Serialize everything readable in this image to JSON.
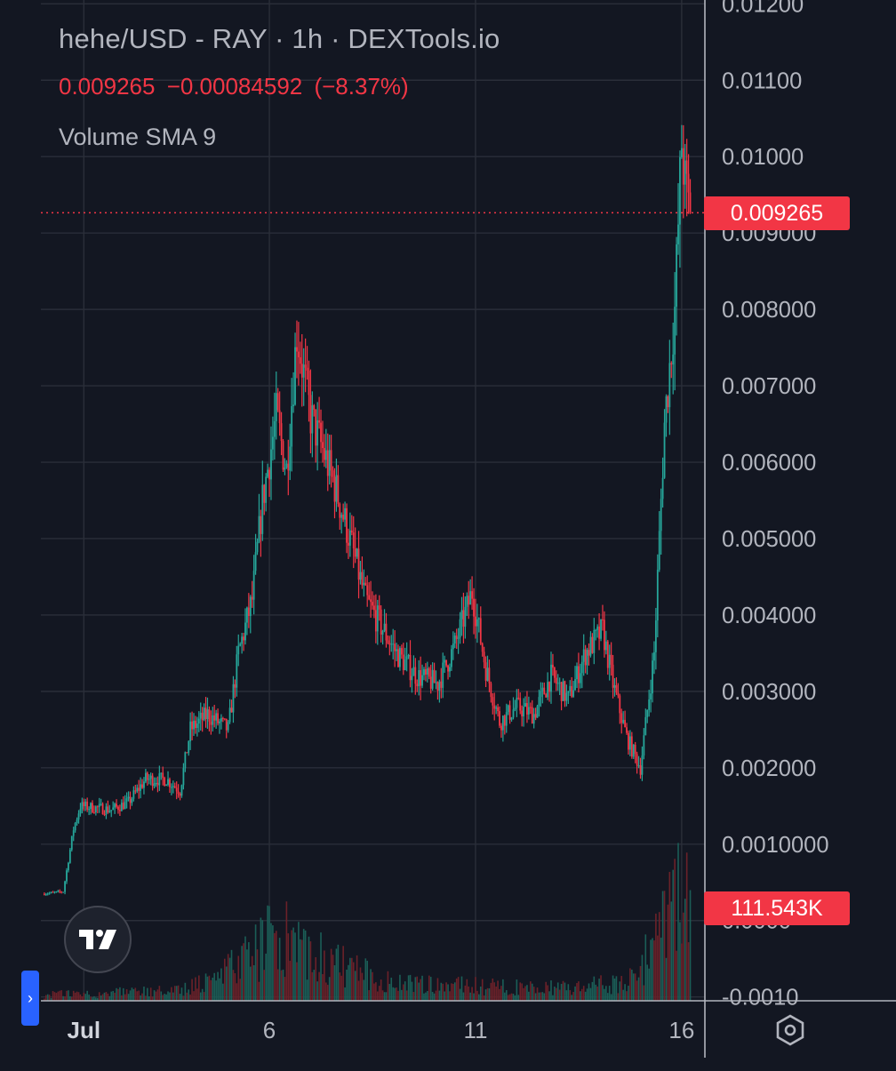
{
  "header": {
    "title": "hehe/USD - RAY · 1h · DEXTools.io",
    "last_price": "0.009265",
    "change": "−0.00084592",
    "change_pct": "(−8.37%)",
    "indicator": "Volume SMA 9"
  },
  "price_tag": "0.009265",
  "volume_tag": "111.543K",
  "colors": {
    "up": "#26a69a",
    "down": "#f23645",
    "background": "#131722",
    "grid": "#2a2e39",
    "text": "#b2b5be"
  },
  "icons": {
    "logo": "tradingview-logo-icon",
    "settings": "hexagon-settings-icon",
    "panel": "chevron-right-icon"
  },
  "chart_data": {
    "type": "candlestick",
    "timeframe": "1h",
    "x_tick_labels": [
      "Jul",
      "6",
      "11",
      "16"
    ],
    "y_tick_labels": [
      "0.01200",
      "0.01100",
      "0.01000",
      "0.009000",
      "0.008000",
      "0.007000",
      "0.006000",
      "0.005000",
      "0.004000",
      "0.003000",
      "0.002000",
      "0.0010000",
      "0.0000",
      "-0.0010"
    ],
    "y_ticks": [
      0.012,
      0.011,
      0.01,
      0.009,
      0.008,
      0.007,
      0.006,
      0.005,
      0.004,
      0.003,
      0.002,
      0.001,
      0.0,
      -0.001
    ],
    "ylim": [
      -0.00105,
      0.01205
    ],
    "xlim": [
      -1,
      385
    ],
    "x_tick_index": [
      24,
      132,
      252,
      372
    ],
    "last_price_line": 0.009265,
    "price_path": [
      [
        0,
        0.00035
      ],
      [
        12,
        0.00038
      ],
      [
        18,
        0.0012
      ],
      [
        22,
        0.0015
      ],
      [
        40,
        0.00145
      ],
      [
        50,
        0.00155
      ],
      [
        60,
        0.00185
      ],
      [
        72,
        0.00185
      ],
      [
        80,
        0.0017
      ],
      [
        86,
        0.0025
      ],
      [
        96,
        0.0027
      ],
      [
        108,
        0.0025
      ],
      [
        114,
        0.0035
      ],
      [
        122,
        0.0042
      ],
      [
        128,
        0.0055
      ],
      [
        136,
        0.0066
      ],
      [
        142,
        0.0059
      ],
      [
        148,
        0.0077
      ],
      [
        156,
        0.0066
      ],
      [
        164,
        0.0061
      ],
      [
        170,
        0.0057
      ],
      [
        180,
        0.0049
      ],
      [
        188,
        0.0042
      ],
      [
        196,
        0.0039
      ],
      [
        206,
        0.0035
      ],
      [
        218,
        0.0032
      ],
      [
        230,
        0.0031
      ],
      [
        240,
        0.0036
      ],
      [
        250,
        0.0043
      ],
      [
        258,
        0.0033
      ],
      [
        266,
        0.0026
      ],
      [
        276,
        0.0028
      ],
      [
        286,
        0.0027
      ],
      [
        296,
        0.0032
      ],
      [
        306,
        0.0029
      ],
      [
        316,
        0.0035
      ],
      [
        326,
        0.0038
      ],
      [
        332,
        0.0031
      ],
      [
        340,
        0.0024
      ],
      [
        348,
        0.002
      ],
      [
        356,
        0.0035
      ],
      [
        362,
        0.0065
      ],
      [
        368,
        0.008
      ],
      [
        372,
        0.0102
      ],
      [
        374,
        0.0096
      ],
      [
        377,
        0.009265
      ]
    ],
    "volume_profile": [
      [
        0,
        0.05
      ],
      [
        80,
        0.08
      ],
      [
        110,
        0.25
      ],
      [
        126,
        0.4
      ],
      [
        136,
        0.55
      ],
      [
        150,
        0.45
      ],
      [
        170,
        0.3
      ],
      [
        200,
        0.15
      ],
      [
        250,
        0.12
      ],
      [
        300,
        0.1
      ],
      [
        340,
        0.15
      ],
      [
        360,
        0.5
      ],
      [
        370,
        0.9
      ],
      [
        377,
        0.85
      ]
    ]
  }
}
